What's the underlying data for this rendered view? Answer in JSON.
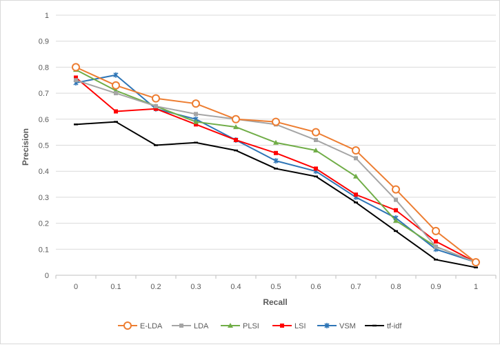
{
  "chart_data": {
    "type": "line",
    "title": "",
    "xlabel": "Recall",
    "ylabel": "Precision",
    "x": [
      "0",
      "0.1",
      "0.2",
      "0.3",
      "0.4",
      "0.5",
      "0.6",
      "0.7",
      "0.8",
      "0.9",
      "1"
    ],
    "y_ticks": [
      "0",
      "0.1",
      "0.2",
      "0.3",
      "0.4",
      "0.5",
      "0.6",
      "0.7",
      "0.8",
      "0.9",
      "1"
    ],
    "ylim": [
      0,
      1
    ],
    "grid": "horizontal",
    "legend_position": "bottom",
    "series": [
      {
        "name": "E-LDA",
        "color": "#ED7D31",
        "marker": "circle",
        "values": [
          0.8,
          0.73,
          0.68,
          0.66,
          0.6,
          0.59,
          0.55,
          0.48,
          0.33,
          0.17,
          0.05
        ]
      },
      {
        "name": "LDA",
        "color": "#A5A5A5",
        "marker": "square",
        "values": [
          0.75,
          0.7,
          0.65,
          0.62,
          0.6,
          0.58,
          0.52,
          0.45,
          0.29,
          0.11,
          0.05
        ]
      },
      {
        "name": "PLSI",
        "color": "#70AD47",
        "marker": "triangle",
        "values": [
          0.79,
          0.71,
          0.65,
          0.59,
          0.57,
          0.51,
          0.48,
          0.38,
          0.21,
          0.11,
          0.05
        ]
      },
      {
        "name": "LSI",
        "color": "#FF0000",
        "marker": "square",
        "values": [
          0.76,
          0.63,
          0.64,
          0.58,
          0.52,
          0.47,
          0.41,
          0.31,
          0.25,
          0.13,
          0.05
        ]
      },
      {
        "name": "VSM",
        "color": "#2E75B6",
        "marker": "star",
        "values": [
          0.74,
          0.77,
          0.64,
          0.6,
          0.52,
          0.44,
          0.4,
          0.3,
          0.22,
          0.1,
          0.05
        ]
      },
      {
        "name": "tf-idf",
        "color": "#000000",
        "marker": "dash",
        "values": [
          0.58,
          0.59,
          0.5,
          0.51,
          0.48,
          0.41,
          0.38,
          0.28,
          0.17,
          0.06,
          0.03
        ]
      }
    ]
  }
}
